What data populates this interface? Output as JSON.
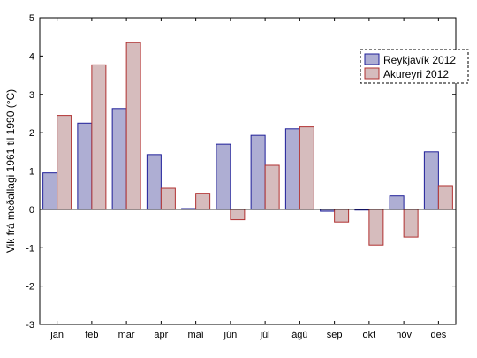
{
  "chart_data": {
    "type": "bar",
    "title": "",
    "xlabel": "",
    "ylabel": "Vik frá meðallagi 1961 til 1990 (°C)",
    "ylim": [
      -3,
      5
    ],
    "yticks": [
      -3,
      -2,
      -1,
      0,
      1,
      2,
      3,
      4,
      5
    ],
    "grid": false,
    "legend_position": "top-right",
    "categories": [
      "jan",
      "feb",
      "mar",
      "apr",
      "maí",
      "jún",
      "júl",
      "ágú",
      "sep",
      "okt",
      "nóv",
      "des"
    ],
    "series": [
      {
        "name": "Reykjavík 2012",
        "color": "#aeaed3",
        "edge_color": "#1f1f99",
        "values": [
          0.95,
          2.25,
          2.63,
          1.43,
          0.02,
          1.7,
          1.93,
          2.1,
          -0.05,
          -0.02,
          0.35,
          1.5
        ]
      },
      {
        "name": "Akureyri 2012",
        "color": "#d6bcbd",
        "edge_color": "#b03030",
        "values": [
          2.45,
          3.77,
          4.35,
          0.55,
          0.42,
          -0.27,
          1.15,
          2.15,
          -0.33,
          -0.93,
          -0.72,
          0.62
        ]
      }
    ]
  }
}
